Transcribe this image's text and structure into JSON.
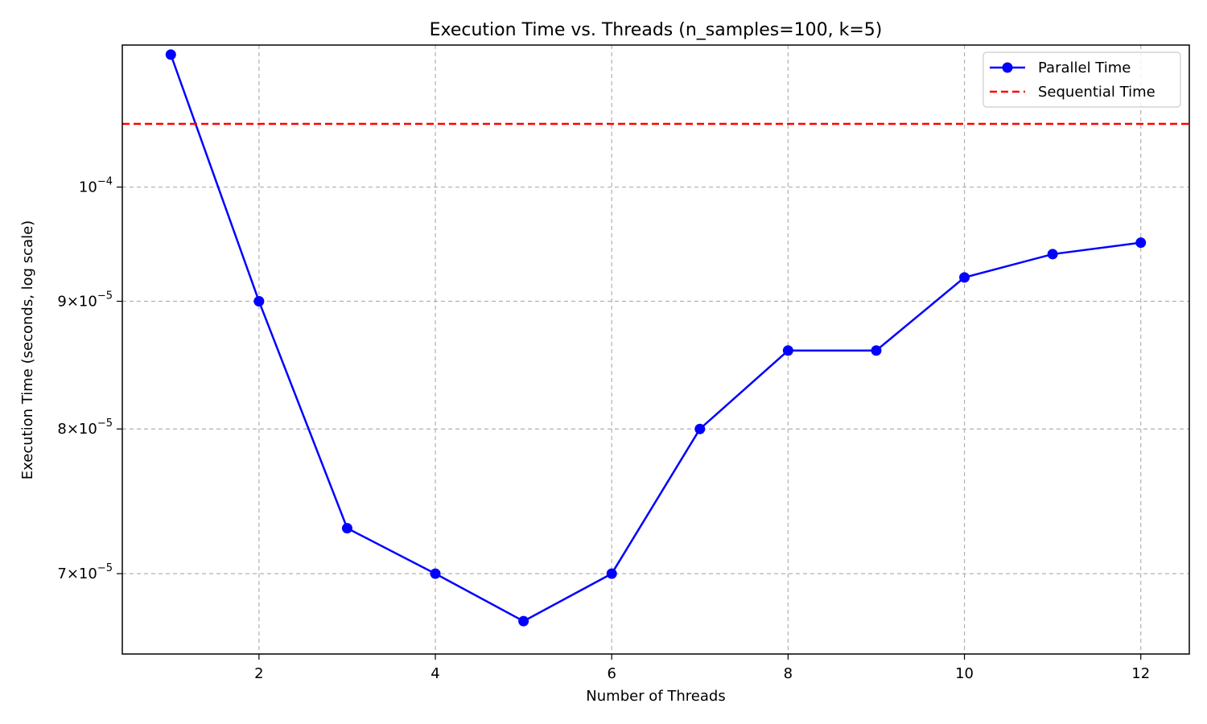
{
  "chart_data": {
    "type": "line",
    "title": "Execution Time vs. Threads (n_samples=100, k=5)",
    "xlabel": "Number of Threads",
    "ylabel": "Execution Time (seconds, log scale)",
    "yscale": "log",
    "xlim": [
      0.45,
      12.55
    ],
    "ylim": [
      6.5e-05,
      0.000114
    ],
    "grid": true,
    "legend_position": "top-right",
    "x_ticks": [
      2,
      4,
      6,
      8,
      10,
      12
    ],
    "y_ticks": [
      {
        "value": 0.0001,
        "mantissa": "",
        "exponent": "−4"
      },
      {
        "value": 9e-05,
        "mantissa": "9",
        "exponent": "−5"
      },
      {
        "value": 8e-05,
        "mantissa": "8",
        "exponent": "−5"
      },
      {
        "value": 7e-05,
        "mantissa": "7",
        "exponent": "−5"
      }
    ],
    "series": [
      {
        "name": "Parallel Time",
        "style": "solid-line-with-markers",
        "color": "#0000ff",
        "x": [
          1,
          2,
          3,
          4,
          5,
          6,
          7,
          8,
          9,
          10,
          11,
          12
        ],
        "y": [
          0.000113,
          9e-05,
          7.3e-05,
          7e-05,
          6.7e-05,
          7e-05,
          8e-05,
          8.6e-05,
          8.6e-05,
          9.2e-05,
          9.4e-05,
          9.5e-05
        ]
      },
      {
        "name": "Sequential Time",
        "style": "dashed-horizontal",
        "color": "#ff0000",
        "y": 0.000106
      }
    ]
  }
}
